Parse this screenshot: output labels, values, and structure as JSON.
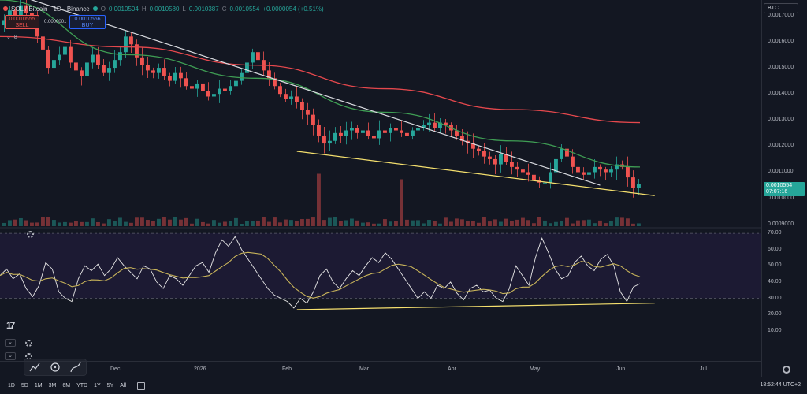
{
  "header": {
    "symbol": "SOL / Bitcoin · 1D · Binance",
    "ohlc": [
      {
        "label": "O",
        "value": "0.0010504"
      },
      {
        "label": "H",
        "value": "0.0010580"
      },
      {
        "label": "L",
        "value": "0.0010387"
      },
      {
        "label": "C",
        "value": "0.0010554"
      }
    ],
    "change": "+0.0000054 (+0.51%)",
    "sell_price": "0.0010555",
    "sell_label": "SELL",
    "buy_price": "0.0010556",
    "buy_label": "BUY",
    "spread": "0.0000001",
    "indicator_count": "8"
  },
  "currency_box": "BTC",
  "price_scale": {
    "ticks": [
      "0.0017000",
      "0.0016000",
      "0.0015000",
      "0.0014000",
      "0.0013000",
      "0.0012000",
      "0.0011000",
      "0.0010000",
      "0.0009000"
    ],
    "current_price": "0.0010554",
    "countdown": "07:07:16"
  },
  "rsi_scale": {
    "ticks": [
      "70.00",
      "60.00",
      "50.00",
      "40.00",
      "30.00",
      "20.00",
      "10.00"
    ]
  },
  "time_axis": {
    "labels": [
      "Dec",
      "2026",
      "Feb",
      "Mar",
      "Apr",
      "May",
      "Jun",
      "Jul"
    ]
  },
  "ranges": [
    "1D",
    "5D",
    "1M",
    "3M",
    "6M",
    "YTD",
    "1Y",
    "5Y",
    "All"
  ],
  "clock": "18:52:44 UTC+2",
  "colors": {
    "up": "#26a69a",
    "down": "#ef5350",
    "ma_long": "#e5484d",
    "ma_mid": "#3f9e54",
    "trendline_white": "#d9dbe0",
    "support_yellow": "#f5e06e",
    "rsi": "#e6e6e6",
    "rsi_ma": "#c8b45a",
    "background": "#131722"
  },
  "chart_data": [
    {
      "type": "candlestick",
      "symbol": "SOL / Bitcoin",
      "interval": "1D",
      "ylim": [
        0.00089,
        0.00176
      ],
      "y_ticks": [
        0.0017,
        0.0016,
        0.0015,
        0.0014,
        0.0013,
        0.0012,
        0.0011,
        0.001,
        0.0009
      ],
      "x_ticks": [
        "Dec",
        "2026",
        "Feb",
        "Mar",
        "Apr",
        "May",
        "Jun",
        "Jul"
      ],
      "close_path": [
        0.00168,
        0.00172,
        0.0017,
        0.00174,
        0.00171,
        0.00169,
        0.00162,
        0.00157,
        0.0015,
        0.00153,
        0.00155,
        0.00158,
        0.00152,
        0.00149,
        0.00147,
        0.00152,
        0.00155,
        0.00151,
        0.00148,
        0.0015,
        0.00153,
        0.00156,
        0.00162,
        0.00159,
        0.00154,
        0.00151,
        0.00149,
        0.00148,
        0.0015,
        0.00147,
        0.00145,
        0.00148,
        0.00146,
        0.00143,
        0.00142,
        0.00144,
        0.00141,
        0.00139,
        0.0014,
        0.00142,
        0.00141,
        0.00143,
        0.00145,
        0.00148,
        0.00152,
        0.00156,
        0.00153,
        0.00149,
        0.00146,
        0.00143,
        0.0014,
        0.00138,
        0.00139,
        0.00137,
        0.00134,
        0.00132,
        0.00128,
        0.00124,
        0.00121,
        0.00122,
        0.00125,
        0.00124,
        0.00126,
        0.00127,
        0.00125,
        0.00126,
        0.00124,
        0.00123,
        0.00126,
        0.00125,
        0.00127,
        0.00126,
        0.00125,
        0.00124,
        0.00126,
        0.00127,
        0.00128,
        0.00129,
        0.00127,
        0.00129,
        0.00128,
        0.00126,
        0.00124,
        0.00122,
        0.00121,
        0.00119,
        0.00118,
        0.00116,
        0.00115,
        0.00113,
        0.00117,
        0.00114,
        0.00112,
        0.00111,
        0.0011,
        0.00109,
        0.00107,
        0.00106,
        0.00106,
        0.0011,
        0.00115,
        0.00119,
        0.00116,
        0.00112,
        0.0011,
        0.00109,
        0.0011,
        0.00112,
        0.00111,
        0.0011,
        0.00111,
        0.00113,
        0.00112,
        0.00108,
        0.00104,
        0.001055
      ],
      "ma_long": [
        0.00162,
        0.00158,
        0.00151,
        0.00142,
        0.00134,
        0.00129
      ],
      "ma_mid": [
        0.00176,
        0.00155,
        0.00146,
        0.00133,
        0.00122,
        0.00112
      ],
      "volume_spikes": [
        {
          "x": "Feb",
          "relative": 0.95
        },
        {
          "x": "Mar",
          "relative": 0.85
        }
      ],
      "annotations": [
        {
          "type": "trendline",
          "color": "white",
          "from": [
            0.0,
            0.0018
          ],
          "to": [
            0.79,
            0.00105
          ]
        },
        {
          "type": "support",
          "color": "yellow",
          "from": [
            0.39,
            0.00118
          ],
          "to": [
            0.86,
            0.00101
          ]
        }
      ]
    },
    {
      "type": "line",
      "name": "RSI",
      "ylim": [
        5,
        72
      ],
      "y_ticks": [
        70,
        60,
        50,
        40,
        30,
        20,
        10
      ],
      "bands": [
        70,
        30
      ],
      "values": [
        44,
        48,
        42,
        45,
        36,
        31,
        38,
        52,
        48,
        34,
        30,
        28,
        42,
        50,
        47,
        51,
        44,
        48,
        55,
        50,
        46,
        42,
        50,
        48,
        40,
        36,
        44,
        42,
        38,
        44,
        50,
        52,
        46,
        58,
        66,
        62,
        68,
        60,
        54,
        48,
        42,
        36,
        32,
        30,
        28,
        24,
        30,
        27,
        34,
        44,
        48,
        40,
        36,
        42,
        47,
        44,
        50,
        55,
        52,
        58,
        54,
        48,
        42,
        36,
        30,
        34,
        30,
        38,
        36,
        40,
        33,
        29,
        36,
        38,
        34,
        35,
        30,
        28,
        36,
        50,
        44,
        38,
        55,
        67,
        58,
        48,
        42,
        44,
        52,
        56,
        50,
        47,
        54,
        57,
        50,
        34,
        28,
        37,
        39
      ],
      "annotation": {
        "type": "support",
        "from": [
          0.39,
          23
        ],
        "to": [
          0.86,
          27
        ]
      }
    }
  ]
}
